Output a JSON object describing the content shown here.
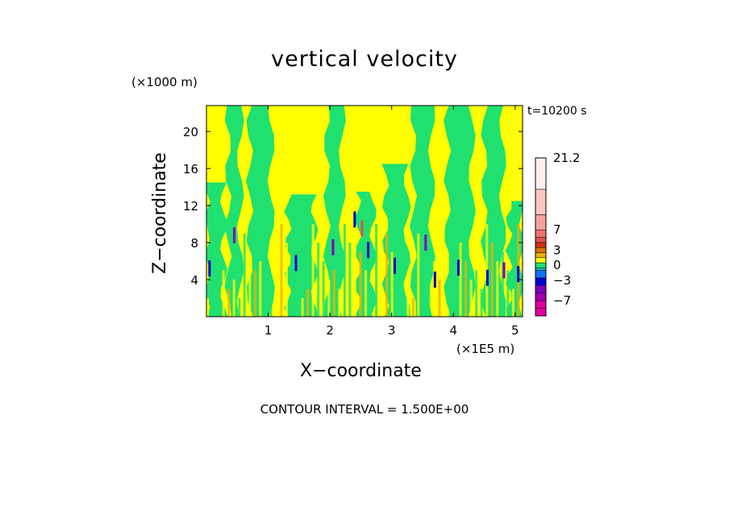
{
  "chart_data": {
    "type": "heatmap",
    "title": "vertical velocity",
    "xlabel": "X−coordinate",
    "ylabel": "Z−coordinate",
    "x_unit": "(×1E5 m)",
    "z_unit": "(×1000 m)",
    "time_label": "t=10200 s",
    "contour_label": "CONTOUR INTERVAL = 1.500E+00",
    "xlim": [
      0,
      5.12
    ],
    "ylim": [
      0,
      22.8
    ],
    "x_ticks": [
      1,
      2,
      3,
      4,
      5
    ],
    "y_ticks": [
      4,
      8,
      12,
      16,
      20
    ],
    "colorbar": {
      "tick_labels": [
        "21.2",
        "7",
        "3",
        "0",
        "−3",
        "−7"
      ],
      "tick_values": [
        21.2,
        7,
        3,
        0,
        -3,
        -7
      ],
      "levels": [
        {
          "lo": -10.0,
          "hi": -8.5,
          "color": "#e000a0"
        },
        {
          "lo": -8.5,
          "hi": -7.0,
          "color": "#e000a0"
        },
        {
          "lo": -7.0,
          "hi": -5.5,
          "color": "#a000b0"
        },
        {
          "lo": -5.5,
          "hi": -4.0,
          "color": "#8000c0"
        },
        {
          "lo": -4.0,
          "hi": -2.5,
          "color": "#0000d0"
        },
        {
          "lo": -2.5,
          "hi": -1.0,
          "color": "#1070ff"
        },
        {
          "lo": -1.0,
          "hi": -0.5,
          "color": "#00c8c8"
        },
        {
          "lo": -0.5,
          "hi": 0.5,
          "color": "#20e070"
        },
        {
          "lo": 0.5,
          "hi": 1.5,
          "color": "#ffff00"
        },
        {
          "lo": 1.5,
          "hi": 2.5,
          "color": "#f0b000"
        },
        {
          "lo": 2.5,
          "hi": 3.5,
          "color": "#e07000"
        },
        {
          "lo": 3.5,
          "hi": 4.5,
          "color": "#d03010"
        },
        {
          "lo": 4.5,
          "hi": 5.5,
          "color": "#e05050"
        },
        {
          "lo": 5.5,
          "hi": 7.0,
          "color": "#f07070"
        },
        {
          "lo": 7.0,
          "hi": 10.0,
          "color": "#f8a0a0"
        },
        {
          "lo": 10.0,
          "hi": 15.0,
          "color": "#fcc8c0"
        },
        {
          "lo": 15.0,
          "hi": 21.2,
          "color": "#fff0ec"
        }
      ]
    },
    "dominant_values": {
      "background": 1.0,
      "updraft_bands": 0.0
    },
    "green_bands": [
      {
        "x0": 0.0,
        "x1": 0.28,
        "z_top": 14.5,
        "value": 0.0
      },
      {
        "x0": 0.35,
        "x1": 0.55,
        "z_top": 22.8,
        "value": 0.0
      },
      {
        "x0": 0.7,
        "x1": 1.05,
        "z_top": 22.8,
        "value": 0.0
      },
      {
        "x0": 1.32,
        "x1": 1.75,
        "z_top": 13.2,
        "value": 0.0
      },
      {
        "x0": 1.95,
        "x1": 2.2,
        "z_top": 22.8,
        "value": 0.0
      },
      {
        "x0": 2.45,
        "x1": 2.7,
        "z_top": 13.5,
        "value": 0.0
      },
      {
        "x0": 2.9,
        "x1": 3.25,
        "z_top": 16.5,
        "value": 0.0
      },
      {
        "x0": 3.35,
        "x1": 3.65,
        "z_top": 22.8,
        "value": 0.0
      },
      {
        "x0": 3.9,
        "x1": 4.3,
        "z_top": 22.8,
        "value": 0.0
      },
      {
        "x0": 4.5,
        "x1": 4.8,
        "z_top": 22.8,
        "value": 0.0
      },
      {
        "x0": 4.9,
        "x1": 5.12,
        "z_top": 12.5,
        "value": 0.0
      }
    ],
    "extreme_features": [
      {
        "x": 0.05,
        "z": 5.2,
        "value": -4.0
      },
      {
        "x": 0.45,
        "z": 8.8,
        "value": -5.0
      },
      {
        "x": 1.45,
        "z": 5.8,
        "value": -3.0
      },
      {
        "x": 2.05,
        "z": 7.5,
        "value": -5.0
      },
      {
        "x": 2.4,
        "z": 10.5,
        "value": -4.0
      },
      {
        "x": 2.52,
        "z": 9.5,
        "value": 5.0
      },
      {
        "x": 2.62,
        "z": 7.2,
        "value": -4.0
      },
      {
        "x": 3.05,
        "z": 5.5,
        "value": -3.0
      },
      {
        "x": 3.55,
        "z": 8.0,
        "value": -5.0
      },
      {
        "x": 3.7,
        "z": 4.0,
        "value": -3.0
      },
      {
        "x": 4.08,
        "z": 5.3,
        "value": -4.0
      },
      {
        "x": 4.55,
        "z": 4.2,
        "value": -3.0
      },
      {
        "x": 4.82,
        "z": 5.0,
        "value": -5.0
      },
      {
        "x": 5.05,
        "z": 4.6,
        "value": -3.0
      }
    ]
  }
}
